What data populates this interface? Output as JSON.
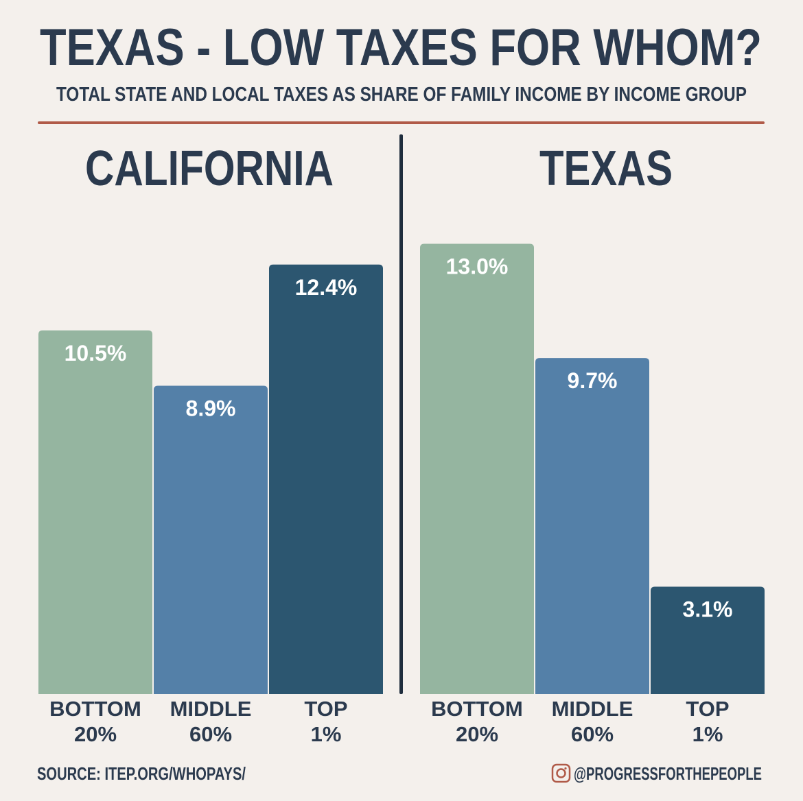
{
  "title": "TEXAS - LOW TAXES FOR WHOM?",
  "subtitle": "TOTAL STATE AND LOCAL TAXES AS SHARE OF FAMILY INCOME BY INCOME GROUP",
  "source": "SOURCE: ITEP.ORG/WHOPAYS/",
  "handle": "@PROGRESSFORTHEPEOPLE",
  "handle_icon": "instagram-icon",
  "colors": {
    "background": "#f4f0ec",
    "text": "#2b3a4e",
    "rule": "#b05a48",
    "bottom": "#95b5a0",
    "middle": "#5480a8",
    "top": "#2c5670"
  },
  "chart_data": [
    {
      "type": "bar",
      "title": "CALIFORNIA",
      "categories": [
        [
          "BOTTOM",
          "20%"
        ],
        [
          "MIDDLE",
          "60%"
        ],
        [
          "TOP",
          "1%"
        ]
      ],
      "values": [
        10.5,
        8.9,
        12.4
      ],
      "labels": [
        "10.5%",
        "8.9%",
        "12.4%"
      ],
      "unit": "%",
      "ylim": [
        0,
        13
      ],
      "grid": false
    },
    {
      "type": "bar",
      "title": "TEXAS",
      "categories": [
        [
          "BOTTOM",
          "20%"
        ],
        [
          "MIDDLE",
          "60%"
        ],
        [
          "TOP",
          "1%"
        ]
      ],
      "values": [
        13.0,
        9.7,
        3.1
      ],
      "labels": [
        "13.0%",
        "9.7%",
        "3.1%"
      ],
      "unit": "%",
      "ylim": [
        0,
        13
      ],
      "grid": false
    }
  ]
}
